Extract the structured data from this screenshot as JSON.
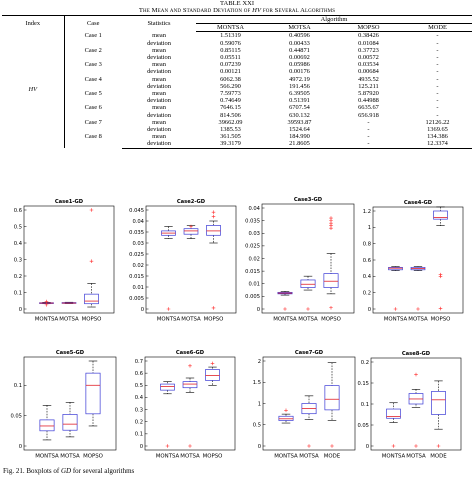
{
  "table": {
    "number": "TABLE XXI",
    "title_pre": "The Mean and Standard Deviation of ",
    "title_ital": "HV",
    "title_post": " for Several Algorithms",
    "head": {
      "index": "Index",
      "case": "Case",
      "statistics": "Statistics",
      "algorithm": "Algorithm",
      "algorithms": [
        "MONTSA",
        "MOTSA",
        "MOPSO",
        "MODE"
      ]
    },
    "index_value": "HV",
    "rows": [
      {
        "case": "Case 1",
        "stat": "mean",
        "v": [
          "1.51319",
          "0.40596",
          "0.38426",
          "-"
        ]
      },
      {
        "case": "",
        "stat": "deviation",
        "v": [
          "0.59076",
          "0.00433",
          "0.01084",
          "-"
        ]
      },
      {
        "case": "Case 2",
        "stat": "mean",
        "v": [
          "0.85115",
          "0.44871",
          "0.37723",
          "-"
        ]
      },
      {
        "case": "",
        "stat": "deviation",
        "v": [
          "0.05511",
          "0.00692",
          "0.00572",
          "-"
        ]
      },
      {
        "case": "Case 3",
        "stat": "mean",
        "v": [
          "0.07239",
          "0.05986",
          "0.03534",
          "-"
        ]
      },
      {
        "case": "",
        "stat": "deviation",
        "v": [
          "0.00121",
          "0.00176",
          "0.00684",
          "-"
        ]
      },
      {
        "case": "Case 4",
        "stat": "mean",
        "v": [
          "6062.38",
          "4972.19",
          "4935.52",
          "-"
        ]
      },
      {
        "case": "",
        "stat": "deviation",
        "v": [
          "566.290",
          "191.456",
          "125.211",
          "-"
        ]
      },
      {
        "case": "Case 5",
        "stat": "mean",
        "v": [
          "7.59773",
          "6.39505",
          "5.87920",
          "-"
        ]
      },
      {
        "case": "",
        "stat": "deviation",
        "v": [
          "0.74649",
          "0.51391",
          "0.44988",
          "-"
        ]
      },
      {
        "case": "Case 6",
        "stat": "mean",
        "v": [
          "7646.15",
          "6707.54",
          "6635.67",
          "-"
        ]
      },
      {
        "case": "",
        "stat": "deviation",
        "v": [
          "814.506",
          "630.132",
          "656.918",
          "-"
        ]
      },
      {
        "case": "Case 7",
        "stat": "mean",
        "v": [
          "39662.09",
          "39593.87",
          "-",
          "12126.22"
        ]
      },
      {
        "case": "",
        "stat": "deviation",
        "v": [
          "1385.53",
          "1524.64",
          "-",
          "1369.65"
        ]
      },
      {
        "case": "Case 8",
        "stat": "mean",
        "v": [
          "361.505",
          "184.990",
          "-",
          "134.386"
        ]
      },
      {
        "case": "",
        "stat": "deviation",
        "v": [
          "39.3179",
          "21.8605",
          "-",
          "12.3374"
        ]
      }
    ]
  },
  "colors": {
    "box": "#3b3bd6",
    "median": "#e0202a",
    "outlier": "#ff2a2a",
    "whisker": "#000000"
  },
  "chart_data": [
    {
      "type": "box",
      "title": "Case1-GD",
      "ylim": [
        0,
        0.6
      ],
      "yticks": [
        "0",
        "0.1",
        "0.2",
        "0.3",
        "0.4",
        "0.5",
        "0.6"
      ],
      "categories": [
        "MONTSA",
        "MOTSA",
        "MOPSO"
      ],
      "boxes": [
        {
          "lw": 0.032,
          "q1": 0.034,
          "med": 0.036,
          "q3": 0.038,
          "uw": 0.04,
          "out": [
            0.025,
            0.045
          ]
        },
        {
          "lw": 0.033,
          "q1": 0.034,
          "med": 0.036,
          "q3": 0.039,
          "uw": 0.041,
          "out": []
        },
        {
          "lw": 0.012,
          "q1": 0.032,
          "med": 0.048,
          "q3": 0.09,
          "uw": 0.155,
          "out": [
            0.29,
            0.6
          ]
        }
      ]
    },
    {
      "type": "box",
      "title": "Case2-GD",
      "ylim": [
        0,
        0.045
      ],
      "yticks": [
        "0",
        "0.005",
        "0.01",
        "0.015",
        "0.02",
        "0.025",
        "0.03",
        "0.035",
        "0.04",
        "0.045"
      ],
      "categories": [
        "MONTSA",
        "MOTSA",
        "MOPSO"
      ],
      "boxes": [
        {
          "lw": 0.032,
          "q1": 0.0335,
          "med": 0.0345,
          "q3": 0.0355,
          "uw": 0.0375,
          "out": [
            0
          ]
        },
        {
          "lw": 0.032,
          "q1": 0.034,
          "med": 0.0355,
          "q3": 0.0365,
          "uw": 0.038,
          "out": [
            0.0375
          ]
        },
        {
          "lw": 0.03,
          "q1": 0.0335,
          "med": 0.0355,
          "q3": 0.038,
          "uw": 0.04,
          "out": [
            0.042,
            0.044,
            0.0005
          ]
        }
      ]
    },
    {
      "type": "box",
      "title": "Case3-GD",
      "ylim": [
        0,
        0.04
      ],
      "yticks": [
        "0",
        "0.005",
        "0.01",
        "0.015",
        "0.02",
        "0.025",
        "0.03",
        "0.035",
        "0.04"
      ],
      "categories": [
        "MONTSA",
        "MOTSA",
        "MOPSO"
      ],
      "boxes": [
        {
          "lw": 0.0055,
          "q1": 0.006,
          "med": 0.0063,
          "q3": 0.0066,
          "uw": 0.007,
          "out": [
            0
          ]
        },
        {
          "lw": 0.0075,
          "q1": 0.0085,
          "med": 0.0098,
          "q3": 0.0115,
          "uw": 0.013,
          "out": [
            0
          ]
        },
        {
          "lw": 0.006,
          "q1": 0.0085,
          "med": 0.011,
          "q3": 0.014,
          "uw": 0.022,
          "out": [
            0.032,
            0.033,
            0.034,
            0.035,
            0.036,
            0.0005
          ]
        }
      ]
    },
    {
      "type": "box",
      "title": "Case4-GD",
      "ylim": [
        0,
        1.2
      ],
      "yticks": [
        "0",
        "0.2",
        "0.4",
        "0.6",
        "0.8",
        "1",
        "1.2"
      ],
      "categories": [
        "MONTSA",
        "MOTSA",
        "MOPSO"
      ],
      "boxes": [
        {
          "lw": 0.47,
          "q1": 0.48,
          "med": 0.5,
          "q3": 0.51,
          "uw": 0.52,
          "out": [
            0
          ]
        },
        {
          "lw": 0.47,
          "q1": 0.48,
          "med": 0.495,
          "q3": 0.51,
          "uw": 0.52,
          "out": [
            0
          ]
        },
        {
          "lw": 1.02,
          "q1": 1.1,
          "med": 1.12,
          "q3": 1.2,
          "uw": 1.25,
          "out": [
            0.42,
            0.4,
            0.005
          ]
        }
      ]
    },
    {
      "type": "box",
      "title": "Case5-GD",
      "ylim": [
        0,
        0.14
      ],
      "yticks": [
        "0",
        "0.05",
        "0.1"
      ],
      "categories": [
        "MONTSA",
        "MOTSA",
        "MOPSO"
      ],
      "boxes": [
        {
          "lw": 0.01,
          "q1": 0.025,
          "med": 0.033,
          "q3": 0.043,
          "uw": 0.067,
          "out": []
        },
        {
          "lw": 0.015,
          "q1": 0.026,
          "med": 0.036,
          "q3": 0.052,
          "uw": 0.072,
          "out": []
        },
        {
          "lw": 0.033,
          "q1": 0.053,
          "med": 0.1,
          "q3": 0.12,
          "uw": 0.14,
          "out": []
        }
      ]
    },
    {
      "type": "box",
      "title": "Case6-GD",
      "ylim": [
        0,
        0.7
      ],
      "yticks": [
        "0",
        "0.1",
        "0.2",
        "0.3",
        "0.4",
        "0.5",
        "0.6",
        "0.7"
      ],
      "categories": [
        "MONTSA",
        "MOTSA",
        "MOPSO"
      ],
      "boxes": [
        {
          "lw": 0.43,
          "q1": 0.46,
          "med": 0.49,
          "q3": 0.51,
          "uw": 0.53,
          "out": [
            0
          ]
        },
        {
          "lw": 0.44,
          "q1": 0.48,
          "med": 0.51,
          "q3": 0.53,
          "uw": 0.56,
          "out": [
            0.66,
            0
          ]
        },
        {
          "lw": 0.5,
          "q1": 0.54,
          "med": 0.58,
          "q3": 0.63,
          "uw": 0.65,
          "out": [
            0.68
          ]
        }
      ]
    },
    {
      "type": "box",
      "title": "Case7-GD",
      "ylim": [
        0,
        2
      ],
      "yticks": [
        "0",
        "0.5",
        "1",
        "1.5",
        "2"
      ],
      "categories": [
        "MONTSA",
        "MOTSA",
        "MODE"
      ],
      "boxes": [
        {
          "lw": 0.54,
          "q1": 0.6,
          "med": 0.64,
          "q3": 0.7,
          "uw": 0.75,
          "out": [
            0.84
          ]
        },
        {
          "lw": 0.62,
          "q1": 0.76,
          "med": 0.88,
          "q3": 1.0,
          "uw": 1.18,
          "out": [
            0
          ]
        },
        {
          "lw": 0.6,
          "q1": 0.85,
          "med": 1.1,
          "q3": 1.42,
          "uw": 1.96,
          "out": [
            0
          ]
        }
      ]
    },
    {
      "type": "box",
      "title": "Case8-GD",
      "ylim": [
        0,
        0.2
      ],
      "yticks": [
        "0",
        "0.05",
        "0.1",
        "0.15",
        "0.2"
      ],
      "categories": [
        "MONTSA",
        "MOTSA",
        "MODE"
      ],
      "boxes": [
        {
          "lw": 0.056,
          "q1": 0.066,
          "med": 0.07,
          "q3": 0.088,
          "uw": 0.103,
          "out": [
            0
          ]
        },
        {
          "lw": 0.092,
          "q1": 0.1,
          "med": 0.112,
          "q3": 0.125,
          "uw": 0.135,
          "out": [
            0.17,
            0
          ]
        },
        {
          "lw": 0.04,
          "q1": 0.075,
          "med": 0.11,
          "q3": 0.13,
          "uw": 0.155,
          "out": [
            0
          ]
        }
      ]
    }
  ],
  "figure": {
    "caption_pre": "Fig. 21.  Boxplots of ",
    "caption_ital": "GD",
    "caption_post": " for several algorithms"
  }
}
